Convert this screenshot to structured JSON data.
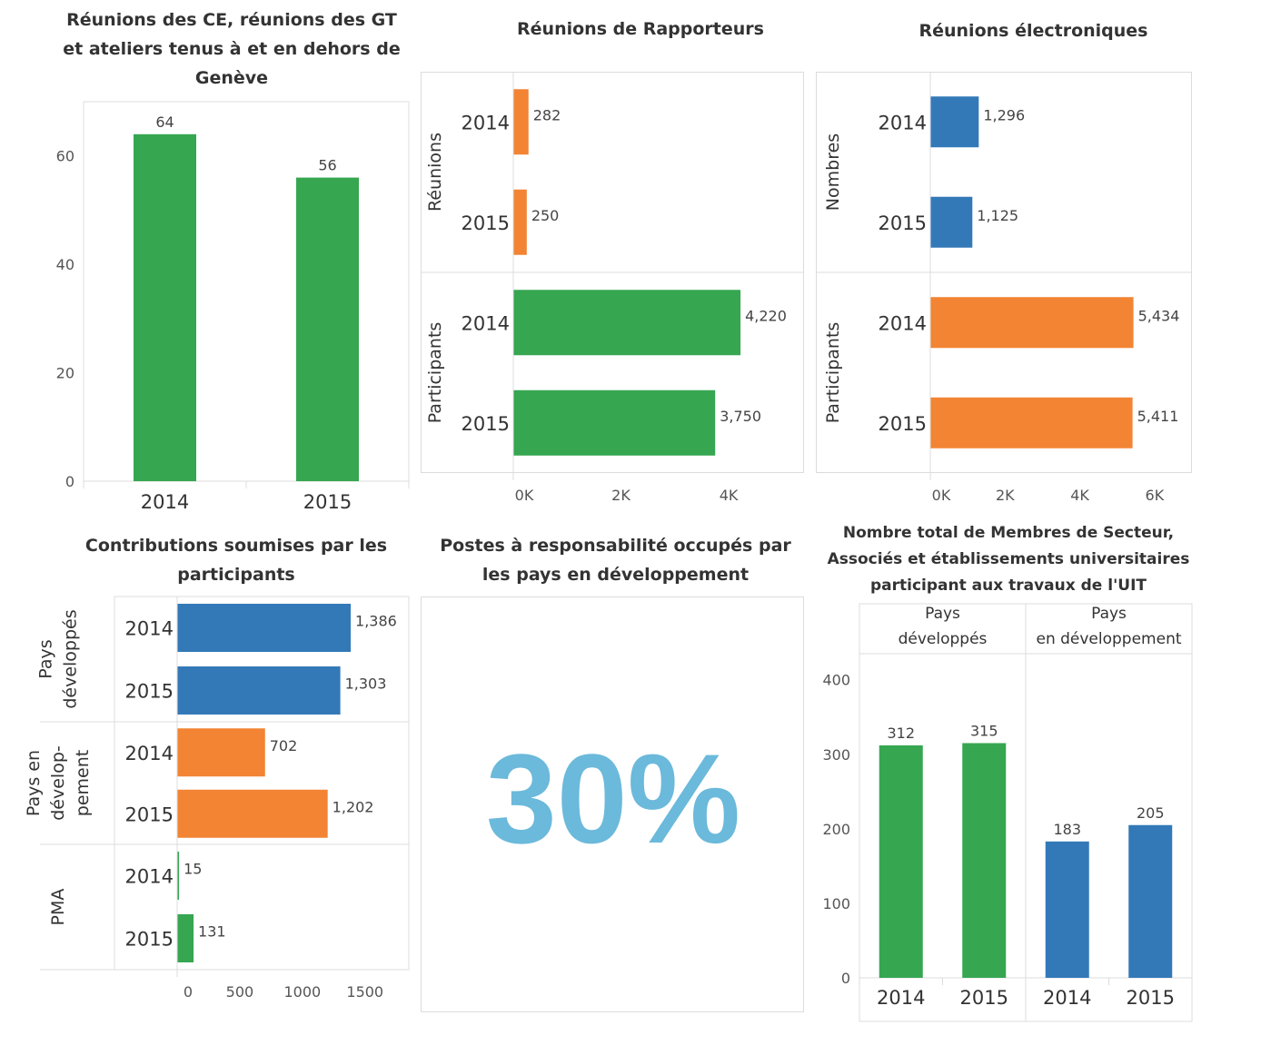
{
  "colors": {
    "green": "#36a651",
    "orange": "#f28433",
    "blue": "#3379b8",
    "kpi": "#6bb9db"
  },
  "chart_data": [
    {
      "type": "bar",
      "title": "Réunions des CE, réunions des GT et ateliers tenus à et en dehors de Genève",
      "categories": [
        "2014",
        "2015"
      ],
      "values": [
        64,
        56
      ],
      "value_labels": [
        "64",
        "56"
      ],
      "ylim": [
        0,
        70
      ],
      "yticks": [
        0,
        20,
        40,
        60
      ],
      "ytick_labels": [
        "0",
        "20",
        "40",
        "60"
      ],
      "color": "green"
    },
    {
      "type": "bar",
      "orientation": "horizontal",
      "title": "Réunions de Rapporteurs",
      "groups": [
        {
          "label": "Réunions",
          "color": "orange",
          "categories": [
            "2014",
            "2015"
          ],
          "values": [
            282,
            250
          ],
          "value_labels": [
            "282",
            "250"
          ]
        },
        {
          "label": "Participants",
          "color": "green",
          "categories": [
            "2014",
            "2015"
          ],
          "values": [
            4220,
            3750
          ],
          "value_labels": [
            "4,220",
            "3,750"
          ]
        }
      ],
      "xlim": [
        0,
        5400
      ],
      "xticks": [
        0,
        2000,
        4000
      ],
      "xtick_labels": [
        "0K",
        "2K",
        "4K"
      ]
    },
    {
      "type": "bar",
      "orientation": "horizontal",
      "title": "Réunions électroniques",
      "groups": [
        {
          "label": "Nombres",
          "color": "blue",
          "categories": [
            "2014",
            "2015"
          ],
          "values": [
            1296,
            1125
          ],
          "value_labels": [
            "1,296",
            "1,125"
          ]
        },
        {
          "label": "Participants",
          "color": "orange",
          "categories": [
            "2014",
            "2015"
          ],
          "values": [
            5434,
            5411
          ],
          "value_labels": [
            "5,434",
            "5,411"
          ]
        }
      ],
      "xlim": [
        0,
        7000
      ],
      "xticks": [
        0,
        2000,
        4000,
        6000
      ],
      "xtick_labels": [
        "0K",
        "2K",
        "4K",
        "6K"
      ]
    },
    {
      "type": "bar",
      "orientation": "horizontal",
      "title": "Contributions soumises par les participants",
      "groups": [
        {
          "label": [
            "Pays",
            "développés"
          ],
          "color": "blue",
          "categories": [
            "2014",
            "2015"
          ],
          "values": [
            1386,
            1303
          ],
          "value_labels": [
            "1,386",
            "1,303"
          ]
        },
        {
          "label": [
            "Pays en",
            "dévelop-",
            "pement"
          ],
          "color": "orange",
          "categories": [
            "2014",
            "2015"
          ],
          "values": [
            702,
            1202
          ],
          "value_labels": [
            "702",
            "1,202"
          ]
        },
        {
          "label": [
            "PMA"
          ],
          "color": "green",
          "categories": [
            "2014",
            "2015"
          ],
          "values": [
            15,
            131
          ],
          "value_labels": [
            "15",
            "131"
          ]
        }
      ],
      "xlim": [
        0,
        1850
      ],
      "xticks": [
        0,
        500,
        1000,
        1500
      ],
      "xtick_labels": [
        "0",
        "500",
        "1000",
        "1500"
      ]
    },
    {
      "type": "table",
      "title": "Postes à responsabilité occupés par les pays en développement",
      "values": [
        30
      ],
      "value_text": "30%"
    },
    {
      "type": "bar",
      "title": "Nombre total de Membres de Secteur, Associés et établissements universitaires participant aux travaux de l'UIT",
      "groups": [
        {
          "label": [
            "Pays",
            "développés"
          ],
          "color": "green",
          "categories": [
            "2014",
            "2015"
          ],
          "values": [
            312,
            315
          ],
          "value_labels": [
            "312",
            "315"
          ]
        },
        {
          "label": [
            "Pays",
            "en développement"
          ],
          "color": "blue",
          "categories": [
            "2014",
            "2015"
          ],
          "values": [
            183,
            205
          ],
          "value_labels": [
            "183",
            "205"
          ]
        }
      ],
      "ylim": [
        0,
        435
      ],
      "yticks": [
        0,
        100,
        200,
        300,
        400
      ],
      "ytick_labels": [
        "0",
        "100",
        "200",
        "300",
        "400"
      ]
    }
  ]
}
